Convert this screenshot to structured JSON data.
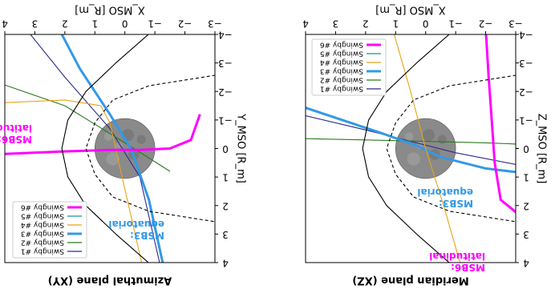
{
  "colors": {
    "swingby_1": "#2b2b8c",
    "swingby_2": "#2a7a1e",
    "swingby_3": "#3399e6",
    "swingby_4": "#e8a317",
    "swingby_5": "#1f8f8f",
    "swingby_6": "#ff00ff",
    "bowshock": "#000000",
    "magnetopause": "#000000",
    "planet": "#8a8a8a"
  },
  "chart_data": [
    {
      "type": "line",
      "title": "Meridian plane (XZ)",
      "xlabel": "X_MSO [R_m]",
      "ylabel": "Z_MSO [R_m]",
      "xlim": [
        -3,
        4
      ],
      "ylim": [
        -4,
        4
      ],
      "orientation": "rotated 180°",
      "xticks": [
        "−3",
        "−2",
        "−1",
        "0",
        "1",
        "2",
        "3",
        "4"
      ],
      "yticks": [
        "−4",
        "−3",
        "−2",
        "−1",
        "0",
        "1",
        "2",
        "3",
        "4"
      ],
      "legend": {
        "placement": "upper-left (rotated view)",
        "entries": [
          "Swingby #1",
          "Swingby #2",
          "Swingby #3",
          "Swingby #4",
          "Swingby #5",
          "Swingby #6"
        ]
      },
      "annotations": [
        {
          "label": "MSB3:",
          "label2": "equatorial",
          "color": "#3399e6"
        },
        {
          "label": "MSB6:",
          "label2": "latitudinal",
          "color": "#ff00ff"
        }
      ],
      "series": [
        {
          "name": "Swingby #1",
          "x": [
            4.2,
            2.0,
            0.5,
            -1.0,
            -3.2
          ],
          "y": [
            -1.2,
            -0.65,
            -0.25,
            0.15,
            0.6
          ]
        },
        {
          "name": "Swingby #2",
          "x": [
            4.2,
            2.0,
            0.0,
            -2.0,
            -3.2
          ],
          "y": [
            -0.35,
            -0.3,
            -0.25,
            -0.2,
            -0.15
          ]
        },
        {
          "name": "Swingby #3",
          "x": [
            4.2,
            1.5,
            0.3,
            -0.5,
            -2.0,
            -3.2
          ],
          "y": [
            -1.5,
            -0.55,
            -0.1,
            0.3,
            0.7,
            0.85
          ]
        },
        {
          "name": "Swingby #4",
          "x": [
            1.1,
            0.5,
            0.0,
            -0.6,
            -1.2
          ],
          "y": [
            -4.2,
            -2.0,
            0.0,
            2.0,
            4.2
          ]
        },
        {
          "name": "Swingby #5",
          "x": [],
          "y": []
        },
        {
          "name": "Swingby #6",
          "x": [
            -2.0,
            -2.1,
            -2.2,
            -2.3,
            -2.5,
            -3.2
          ],
          "y": [
            -4.2,
            -2.5,
            -1.0,
            0.5,
            1.8,
            2.4
          ]
        },
        {
          "name": "bow shock",
          "x": [
            -1.0,
            0.3,
            1.3,
            1.9,
            2.1,
            1.9,
            1.3,
            0.3,
            -1.0
          ],
          "y": [
            -4.2,
            -3.0,
            -2.0,
            -1.0,
            0.0,
            1.0,
            2.0,
            3.0,
            4.2
          ]
        },
        {
          "name": "magnetopause",
          "x": [
            -3.2,
            -0.8,
            0.4,
            1.0,
            1.3,
            1.0,
            0.4,
            -0.8,
            -3.2
          ],
          "y": [
            -2.6,
            -2.2,
            -1.7,
            -0.9,
            0.0,
            0.9,
            1.7,
            2.2,
            2.6
          ]
        }
      ]
    },
    {
      "type": "line",
      "title": "Azimuthal plane (XY)",
      "xlabel": "X_MSO [R_m]",
      "ylabel": "Y_MSO [R_m]",
      "xlim": [
        -3,
        4
      ],
      "ylim": [
        -4,
        4
      ],
      "orientation": "rotated 180°",
      "xticks": [
        "−3",
        "−2",
        "−1",
        "0",
        "1",
        "2",
        "3",
        "4"
      ],
      "yticks": [
        "−4",
        "−3",
        "−2",
        "−1",
        "0",
        "1",
        "2",
        "3",
        "4"
      ],
      "legend": {
        "placement": "upper-right (rotated view)",
        "entries": [
          "Swingby #1",
          "Swingby #2",
          "Swingby #3",
          "Swingby #4",
          "Swingby #5",
          "Swingby #6"
        ]
      },
      "annotations": [
        {
          "label": "MSB3:",
          "label2": "equatorial",
          "color": "#3399e6"
        },
        {
          "label": "MSB6:",
          "label2": "latitudinal",
          "color": "#ff00ff"
        }
      ],
      "series": [
        {
          "name": "Swingby #1",
          "x": [
            3.3,
            2.0,
            0.5,
            -0.5,
            -1.2
          ],
          "y": [
            -4.2,
            -2.5,
            -0.7,
            1.0,
            4.2
          ]
        },
        {
          "name": "Swingby #2",
          "x": [
            4.2,
            2.0,
            0.0,
            -1.5
          ],
          "y": [
            -2.3,
            -1.5,
            -0.2,
            0.8
          ]
        },
        {
          "name": "Swingby #3",
          "x": [
            2.2,
            1.5,
            0.5,
            -0.2,
            -0.8,
            -1.3
          ],
          "y": [
            -4.2,
            -2.8,
            -1.2,
            0.0,
            1.8,
            4.2
          ]
        },
        {
          "name": "Swingby #4",
          "x": [
            4.2,
            2.0,
            0.8,
            0.5,
            0.2,
            -0.6
          ],
          "y": [
            -1.6,
            -1.7,
            -1.5,
            -0.9,
            0.5,
            4.2
          ]
        },
        {
          "name": "Swingby #5",
          "x": [],
          "y": []
        },
        {
          "name": "Swingby #6",
          "x": [
            4.2,
            2.0,
            0.5,
            -0.5,
            -1.5,
            -2.2,
            -2.5
          ],
          "y": [
            0.2,
            0.1,
            0.05,
            0.05,
            0.0,
            -0.3,
            -1.2
          ]
        },
        {
          "name": "bow shock",
          "x": [
            -1.0,
            0.3,
            1.3,
            1.9,
            2.1,
            1.9,
            1.3,
            0.3,
            -1.0
          ],
          "y": [
            -4.2,
            -3.0,
            -2.0,
            -1.0,
            0.0,
            1.0,
            2.0,
            3.0,
            4.2
          ]
        },
        {
          "name": "magnetopause",
          "x": [
            -3.2,
            -0.8,
            0.4,
            1.0,
            1.3,
            1.0,
            0.4,
            -0.8,
            -3.2
          ],
          "y": [
            -2.6,
            -2.2,
            -1.7,
            -0.9,
            0.0,
            0.9,
            1.7,
            2.2,
            2.6
          ]
        }
      ]
    }
  ]
}
